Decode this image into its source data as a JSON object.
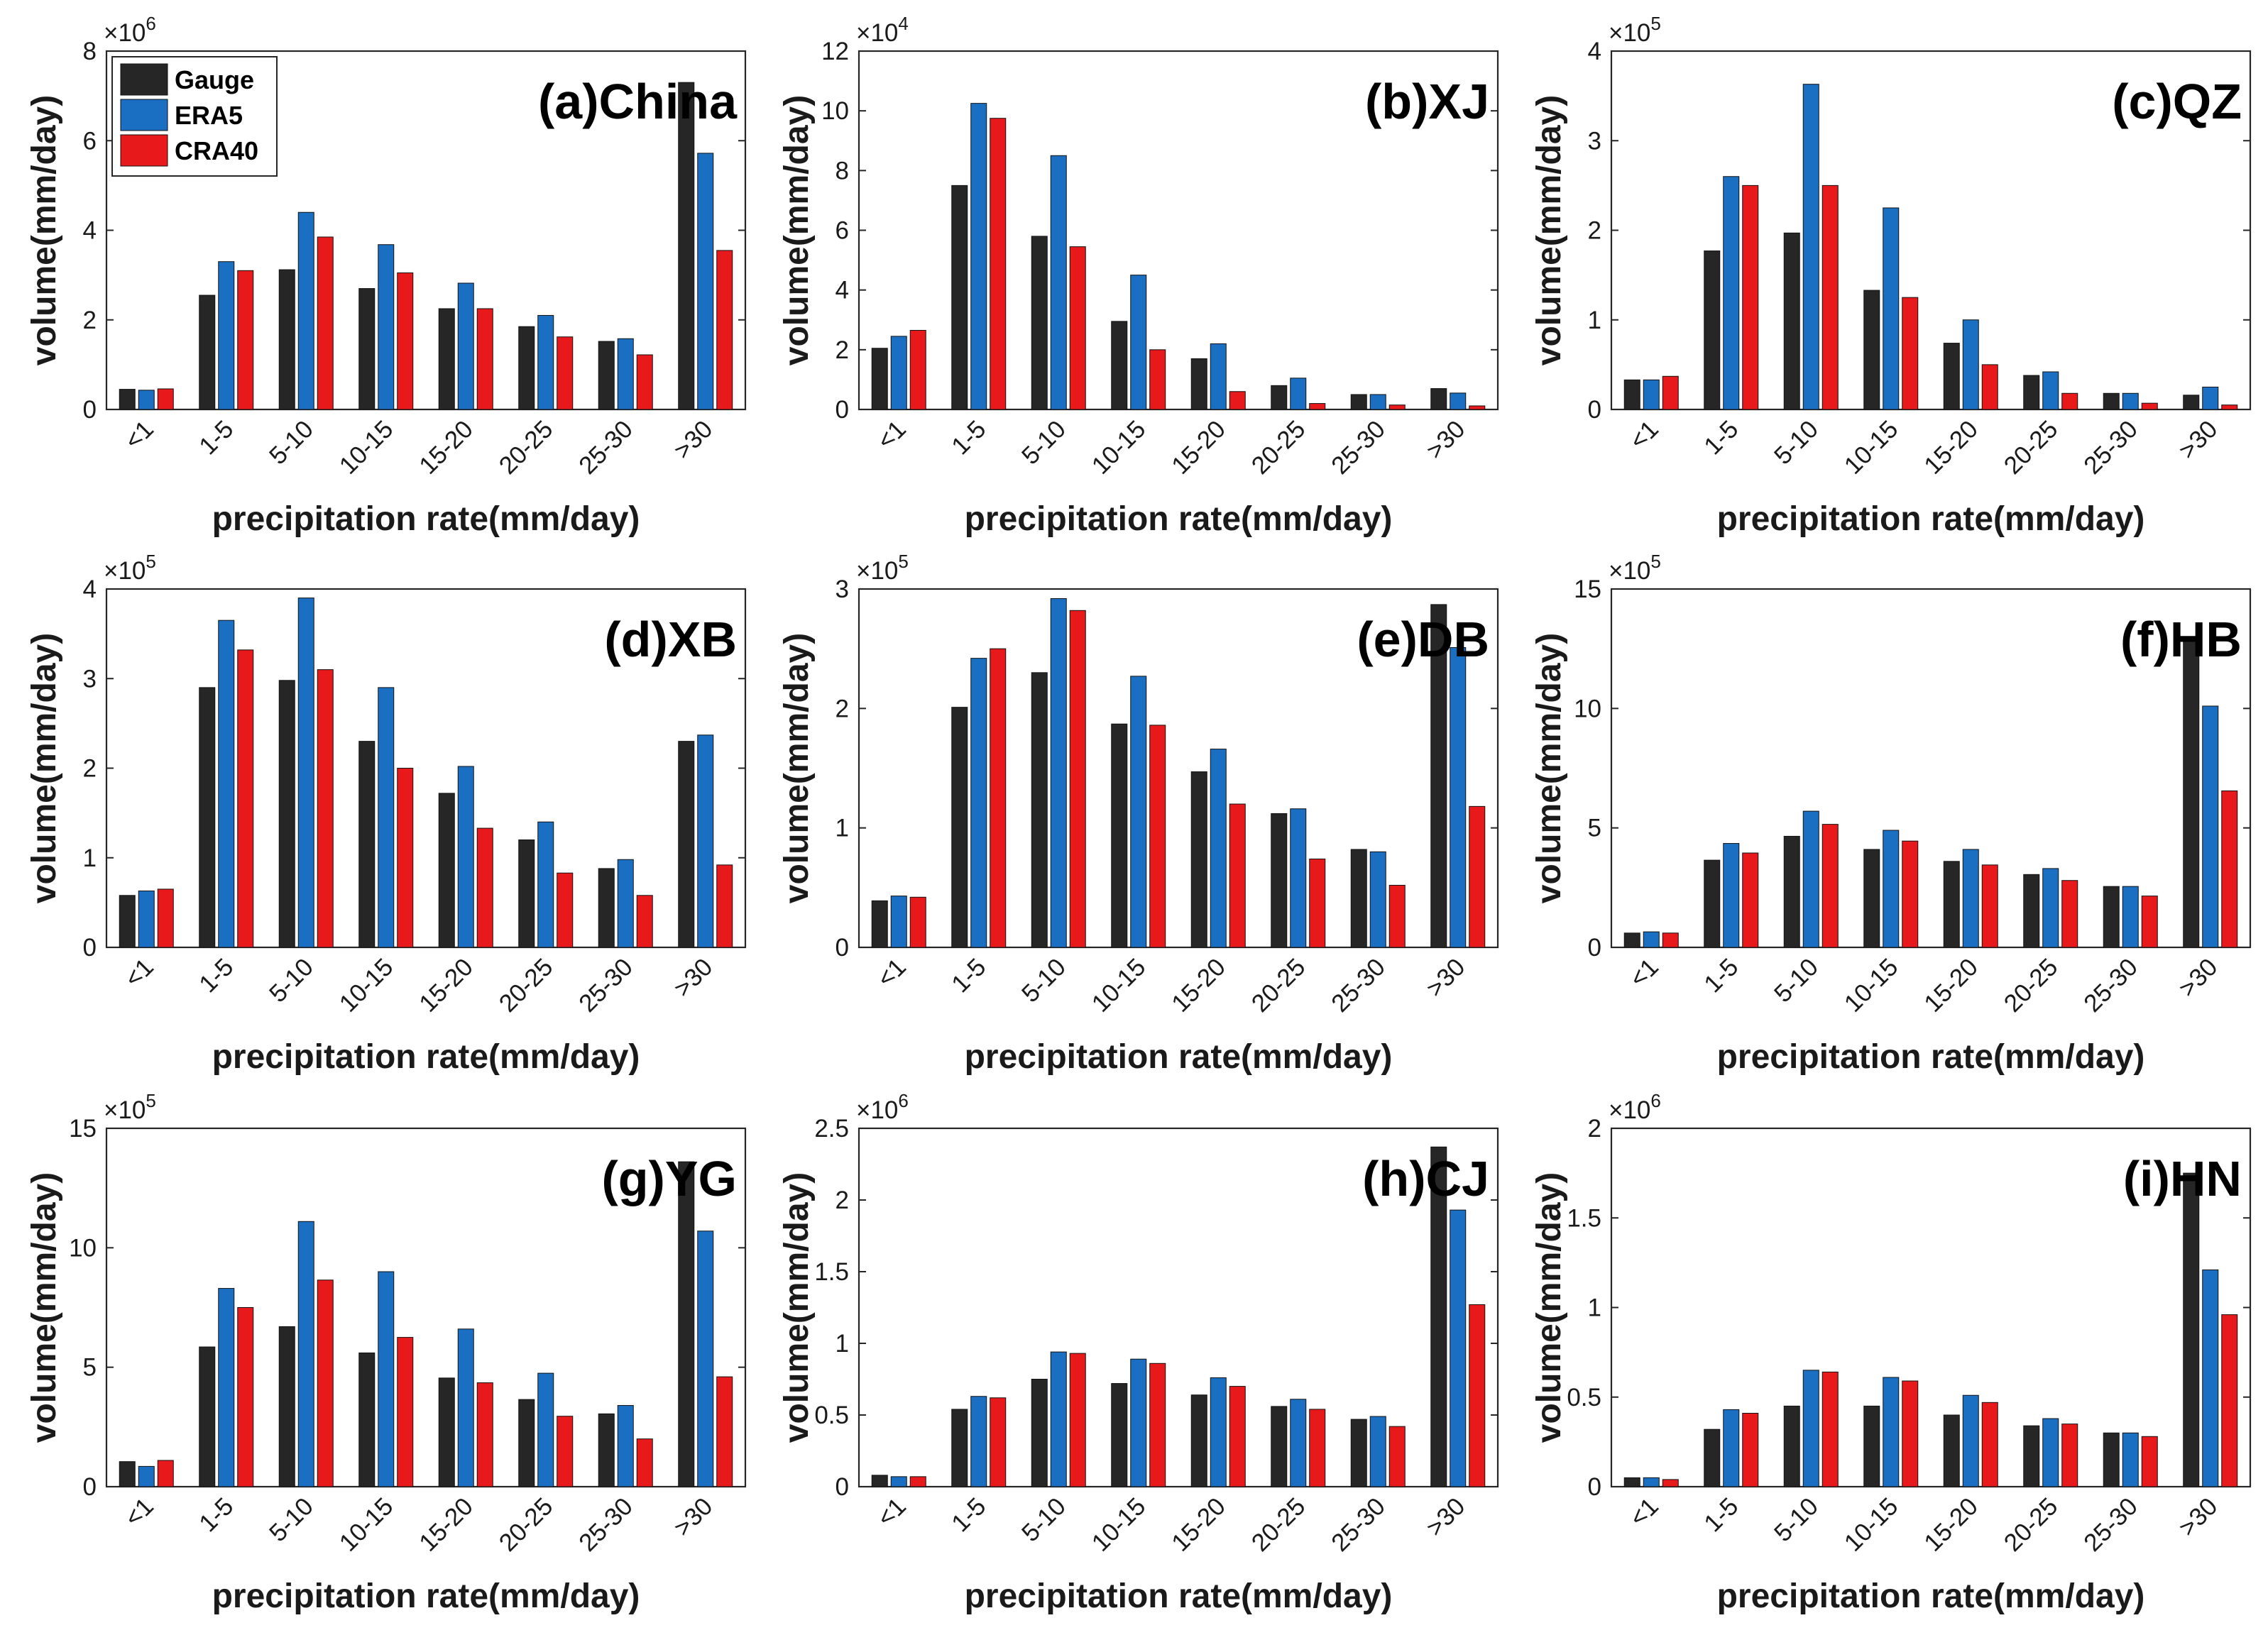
{
  "colors": {
    "Gauge": "#262626",
    "ERA5": "#1a6fc2",
    "CRA40": "#e8191b"
  },
  "legend": [
    {
      "name": "Gauge",
      "color": "#262626"
    },
    {
      "name": "ERA5",
      "color": "#1a6fc2"
    },
    {
      "name": "CRA40",
      "color": "#e8191b"
    }
  ],
  "chart_data": [
    {
      "type": "bar",
      "title": "(a)China",
      "xlabel": "precipitation rate(mm/day)",
      "ylabel": "volume(mm/day)",
      "categories": [
        "<1",
        "1-5",
        "5-10",
        "10-15",
        "15-20",
        "20-25",
        "25-30",
        ">30"
      ],
      "ylim": [
        0,
        8
      ],
      "yticks": [
        0,
        2,
        4,
        6,
        8
      ],
      "ytick_labels": [
        "0",
        "2",
        "4",
        "6",
        "8"
      ],
      "exponent": "6",
      "legend": "top-left",
      "series": [
        {
          "name": "Gauge",
          "values": [
            0.45,
            2.55,
            3.12,
            2.7,
            2.25,
            1.85,
            1.52,
            7.3
          ]
        },
        {
          "name": "ERA5",
          "values": [
            0.43,
            3.3,
            4.4,
            3.68,
            2.82,
            2.1,
            1.58,
            5.72
          ]
        },
        {
          "name": "CRA40",
          "values": [
            0.46,
            3.1,
            3.85,
            3.05,
            2.25,
            1.62,
            1.22,
            3.55
          ]
        }
      ]
    },
    {
      "type": "bar",
      "title": "(b)XJ",
      "xlabel": "precipitation rate(mm/day)",
      "ylabel": "volume(mm/day)",
      "categories": [
        "<1",
        "1-5",
        "5-10",
        "10-15",
        "15-20",
        "20-25",
        "25-30",
        ">30"
      ],
      "ylim": [
        0,
        12
      ],
      "yticks": [
        0,
        2,
        4,
        6,
        8,
        10,
        12
      ],
      "ytick_labels": [
        "0",
        "2",
        "4",
        "6",
        "8",
        "10",
        "12"
      ],
      "exponent": "4",
      "series": [
        {
          "name": "Gauge",
          "values": [
            2.05,
            7.5,
            5.8,
            2.95,
            1.7,
            0.8,
            0.5,
            0.7
          ]
        },
        {
          "name": "ERA5",
          "values": [
            2.45,
            10.25,
            8.5,
            4.5,
            2.2,
            1.05,
            0.5,
            0.55
          ]
        },
        {
          "name": "CRA40",
          "values": [
            2.65,
            9.75,
            5.45,
            2.0,
            0.6,
            0.2,
            0.15,
            0.12
          ]
        }
      ]
    },
    {
      "type": "bar",
      "title": "(c)QZ",
      "xlabel": "precipitation rate(mm/day)",
      "ylabel": "volume(mm/day)",
      "categories": [
        "<1",
        "1-5",
        "5-10",
        "10-15",
        "15-20",
        "20-25",
        "25-30",
        ">30"
      ],
      "ylim": [
        0,
        4
      ],
      "yticks": [
        0,
        1,
        2,
        3,
        4
      ],
      "ytick_labels": [
        "0",
        "1",
        "2",
        "3",
        "4"
      ],
      "exponent": "5",
      "series": [
        {
          "name": "Gauge",
          "values": [
            0.33,
            1.77,
            1.97,
            1.33,
            0.74,
            0.38,
            0.18,
            0.16
          ]
        },
        {
          "name": "ERA5",
          "values": [
            0.33,
            2.6,
            3.63,
            2.25,
            1.0,
            0.42,
            0.18,
            0.25
          ]
        },
        {
          "name": "CRA40",
          "values": [
            0.37,
            2.5,
            2.5,
            1.25,
            0.5,
            0.18,
            0.07,
            0.05
          ]
        }
      ]
    },
    {
      "type": "bar",
      "title": "(d)XB",
      "xlabel": "precipitation rate(mm/day)",
      "ylabel": "volume(mm/day)",
      "categories": [
        "<1",
        "1-5",
        "5-10",
        "10-15",
        "15-20",
        "20-25",
        "25-30",
        ">30"
      ],
      "ylim": [
        0,
        4
      ],
      "yticks": [
        0,
        1,
        2,
        3,
        4
      ],
      "ytick_labels": [
        "0",
        "1",
        "2",
        "3",
        "4"
      ],
      "exponent": "5",
      "series": [
        {
          "name": "Gauge",
          "values": [
            0.58,
            2.9,
            2.98,
            2.3,
            1.72,
            1.2,
            0.88,
            2.3
          ]
        },
        {
          "name": "ERA5",
          "values": [
            0.63,
            3.65,
            3.9,
            2.9,
            2.02,
            1.4,
            0.98,
            2.37
          ]
        },
        {
          "name": "CRA40",
          "values": [
            0.65,
            3.32,
            3.1,
            2.0,
            1.33,
            0.83,
            0.58,
            0.92
          ]
        }
      ]
    },
    {
      "type": "bar",
      "title": "(e)DB",
      "xlabel": "precipitation rate(mm/day)",
      "ylabel": "volume(mm/day)",
      "categories": [
        "<1",
        "1-5",
        "5-10",
        "10-15",
        "15-20",
        "20-25",
        "25-30",
        ">30"
      ],
      "ylim": [
        0,
        3
      ],
      "yticks": [
        0,
        1,
        2,
        3
      ],
      "ytick_labels": [
        "0",
        "1",
        "2",
        "3"
      ],
      "exponent": "5",
      "series": [
        {
          "name": "Gauge",
          "values": [
            0.39,
            2.01,
            2.3,
            1.87,
            1.47,
            1.12,
            0.82,
            2.87
          ]
        },
        {
          "name": "ERA5",
          "values": [
            0.43,
            2.42,
            2.92,
            2.27,
            1.66,
            1.16,
            0.8,
            2.51
          ]
        },
        {
          "name": "CRA40",
          "values": [
            0.42,
            2.5,
            2.82,
            1.86,
            1.2,
            0.74,
            0.52,
            1.18
          ]
        }
      ]
    },
    {
      "type": "bar",
      "title": "(f)HB",
      "xlabel": "precipitation rate(mm/day)",
      "ylabel": "volume(mm/day)",
      "categories": [
        "<1",
        "1-5",
        "5-10",
        "10-15",
        "15-20",
        "20-25",
        "25-30",
        ">30"
      ],
      "ylim": [
        0,
        15
      ],
      "yticks": [
        0,
        5,
        10,
        15
      ],
      "ytick_labels": [
        "0",
        "5",
        "10",
        "15"
      ],
      "exponent": "5",
      "series": [
        {
          "name": "Gauge",
          "values": [
            0.6,
            3.65,
            4.65,
            4.1,
            3.6,
            3.05,
            2.55,
            12.9
          ]
        },
        {
          "name": "ERA5",
          "values": [
            0.65,
            4.35,
            5.7,
            4.9,
            4.1,
            3.3,
            2.55,
            10.1
          ]
        },
        {
          "name": "CRA40",
          "values": [
            0.6,
            3.95,
            5.15,
            4.45,
            3.45,
            2.8,
            2.15,
            6.55
          ]
        }
      ]
    },
    {
      "type": "bar",
      "title": "(g)YG",
      "xlabel": "precipitation rate(mm/day)",
      "ylabel": "volume(mm/day)",
      "categories": [
        "<1",
        "1-5",
        "5-10",
        "10-15",
        "15-20",
        "20-25",
        "25-30",
        ">30"
      ],
      "ylim": [
        0,
        15
      ],
      "yticks": [
        0,
        5,
        10,
        15
      ],
      "ytick_labels": [
        "0",
        "5",
        "10",
        "15"
      ],
      "exponent": "5",
      "series": [
        {
          "name": "Gauge",
          "values": [
            1.05,
            5.85,
            6.7,
            5.6,
            4.55,
            3.65,
            3.05,
            13.6
          ]
        },
        {
          "name": "ERA5",
          "values": [
            0.85,
            8.3,
            11.1,
            9.0,
            6.6,
            4.75,
            3.4,
            10.7
          ]
        },
        {
          "name": "CRA40",
          "values": [
            1.1,
            7.5,
            8.65,
            6.25,
            4.35,
            2.95,
            2.0,
            4.6
          ]
        }
      ]
    },
    {
      "type": "bar",
      "title": "(h)CJ",
      "xlabel": "precipitation rate(mm/day)",
      "ylabel": "volume(mm/day)",
      "categories": [
        "<1",
        "1-5",
        "5-10",
        "10-15",
        "15-20",
        "20-25",
        "25-30",
        ">30"
      ],
      "ylim": [
        0,
        2.5
      ],
      "yticks": [
        0,
        0.5,
        1,
        1.5,
        2,
        2.5
      ],
      "ytick_labels": [
        "0",
        "0.5",
        "1",
        "1.5",
        "2",
        "2.5"
      ],
      "exponent": "6",
      "series": [
        {
          "name": "Gauge",
          "values": [
            0.08,
            0.54,
            0.75,
            0.72,
            0.64,
            0.56,
            0.47,
            2.37
          ]
        },
        {
          "name": "ERA5",
          "values": [
            0.07,
            0.63,
            0.94,
            0.89,
            0.76,
            0.61,
            0.49,
            1.93
          ]
        },
        {
          "name": "CRA40",
          "values": [
            0.07,
            0.62,
            0.93,
            0.86,
            0.7,
            0.54,
            0.42,
            1.27
          ]
        }
      ]
    },
    {
      "type": "bar",
      "title": "(i)HN",
      "xlabel": "precipitation rate(mm/day)",
      "ylabel": "volume(mm/day)",
      "categories": [
        "<1",
        "1-5",
        "5-10",
        "10-15",
        "15-20",
        "20-25",
        "25-30",
        ">30"
      ],
      "ylim": [
        0,
        2
      ],
      "yticks": [
        0,
        0.5,
        1,
        1.5,
        2
      ],
      "ytick_labels": [
        "0",
        "0.5",
        "1",
        "1.5",
        "2"
      ],
      "exponent": "6",
      "series": [
        {
          "name": "Gauge",
          "values": [
            0.05,
            0.32,
            0.45,
            0.45,
            0.4,
            0.34,
            0.3,
            1.75
          ]
        },
        {
          "name": "ERA5",
          "values": [
            0.05,
            0.43,
            0.65,
            0.61,
            0.51,
            0.38,
            0.3,
            1.21
          ]
        },
        {
          "name": "CRA40",
          "values": [
            0.04,
            0.41,
            0.64,
            0.59,
            0.47,
            0.35,
            0.28,
            0.96
          ]
        }
      ]
    }
  ]
}
